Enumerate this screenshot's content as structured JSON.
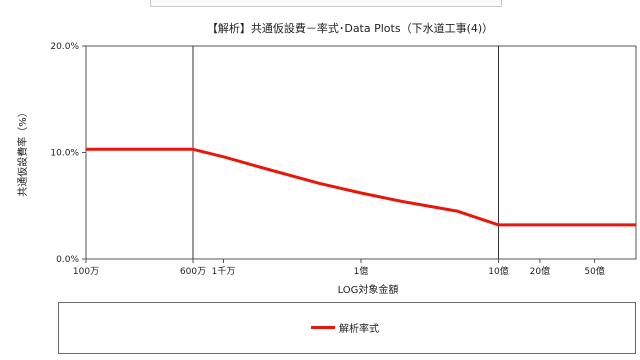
{
  "chart_data": {
    "type": "line",
    "title": "【解析】共通仮設費－率式･Data Plots（下水道工事(4)）",
    "xlabel": "LOG対象金額",
    "ylabel": "共通仮設費率（%）",
    "x_scale": "log",
    "xlim": [
      1000000,
      10000000000
    ],
    "ylim": [
      0,
      20
    ],
    "yticks": [
      {
        "value": 0,
        "label": "0.0%"
      },
      {
        "value": 10,
        "label": "10.0%"
      },
      {
        "value": 20,
        "label": "20.0%"
      }
    ],
    "xticks": [
      {
        "value": 1000000,
        "label": "100万"
      },
      {
        "value": 6000000,
        "label": "600万"
      },
      {
        "value": 10000000,
        "label": "1千万"
      },
      {
        "value": 100000000,
        "label": "1億"
      },
      {
        "value": 1000000000,
        "label": "10億"
      },
      {
        "value": 2000000000,
        "label": "20億"
      },
      {
        "value": 5000000000,
        "label": "50億"
      }
    ],
    "vlines": [
      6000000,
      1000000000
    ],
    "grid": false,
    "legend": "bottom",
    "series": [
      {
        "name": "解析率式",
        "color": "#e8170c",
        "x": [
          1000000,
          6000000,
          10000000,
          20000000,
          50000000,
          100000000,
          200000000,
          500000000,
          1000000000,
          10000000000
        ],
        "y": [
          10.3,
          10.3,
          9.6,
          8.5,
          7.1,
          6.2,
          5.4,
          4.5,
          3.2,
          3.2
        ]
      }
    ]
  }
}
